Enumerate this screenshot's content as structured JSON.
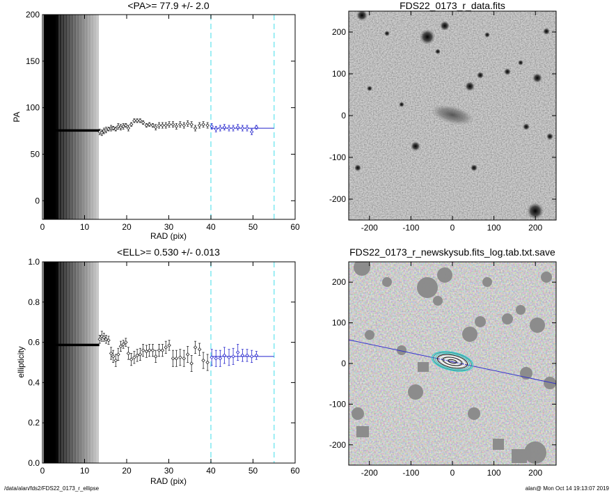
{
  "chart_data": [
    {
      "type": "scatter",
      "title": "<PA>=  77.9 +/-   2.0",
      "xlabel": "RAD (pix)",
      "ylabel": "PA",
      "xlim": [
        0,
        60
      ],
      "ylim": [
        -20,
        200
      ],
      "xticks": [
        "0",
        "10",
        "20",
        "30",
        "40",
        "50",
        "60"
      ],
      "yticks": [
        "0",
        "50",
        "100",
        "150",
        "200"
      ],
      "vlines": [
        40,
        55
      ],
      "vline_color": "#7ee8f0",
      "fit": {
        "x0": 40,
        "x1": 55,
        "y": 77.9,
        "color": "#2222cc"
      },
      "flat_segment": {
        "x0": 1,
        "x1": 13.5,
        "y": 75.5
      },
      "series": [
        {
          "color": "#222222",
          "points": [
            {
              "x": 13.6,
              "y": 74,
              "e": 3
            },
            {
              "x": 14.1,
              "y": 73,
              "e": 3
            },
            {
              "x": 14.6,
              "y": 75,
              "e": 3
            },
            {
              "x": 15.1,
              "y": 76,
              "e": 3
            },
            {
              "x": 15.7,
              "y": 77,
              "e": 2
            },
            {
              "x": 16.3,
              "y": 78,
              "e": 3
            },
            {
              "x": 16.8,
              "y": 78,
              "e": 2
            },
            {
              "x": 17.4,
              "y": 77,
              "e": 2
            },
            {
              "x": 18.0,
              "y": 80,
              "e": 3
            },
            {
              "x": 18.6,
              "y": 79,
              "e": 3
            },
            {
              "x": 19.2,
              "y": 80,
              "e": 3
            },
            {
              "x": 19.8,
              "y": 81,
              "e": 2
            },
            {
              "x": 20.4,
              "y": 78,
              "e": 3
            },
            {
              "x": 21.1,
              "y": 82,
              "e": 2
            },
            {
              "x": 21.8,
              "y": 86,
              "e": 2
            },
            {
              "x": 22.5,
              "y": 86,
              "e": 2
            },
            {
              "x": 23.2,
              "y": 86,
              "e": 2
            },
            {
              "x": 23.9,
              "y": 84,
              "e": 2
            },
            {
              "x": 24.7,
              "y": 81,
              "e": 2
            },
            {
              "x": 25.4,
              "y": 82,
              "e": 2
            },
            {
              "x": 26.2,
              "y": 81,
              "e": 2
            },
            {
              "x": 26.9,
              "y": 79,
              "e": 3
            },
            {
              "x": 27.7,
              "y": 81,
              "e": 3
            },
            {
              "x": 28.5,
              "y": 81,
              "e": 3
            },
            {
              "x": 29.3,
              "y": 81,
              "e": 3
            },
            {
              "x": 30.1,
              "y": 82,
              "e": 3
            },
            {
              "x": 31.0,
              "y": 82,
              "e": 3
            },
            {
              "x": 31.8,
              "y": 80,
              "e": 3
            },
            {
              "x": 32.7,
              "y": 82,
              "e": 3
            },
            {
              "x": 33.6,
              "y": 81,
              "e": 3
            },
            {
              "x": 34.5,
              "y": 83,
              "e": 3
            },
            {
              "x": 35.4,
              "y": 82,
              "e": 3
            },
            {
              "x": 36.3,
              "y": 78,
              "e": 3
            },
            {
              "x": 37.3,
              "y": 81,
              "e": 3
            },
            {
              "x": 38.2,
              "y": 82,
              "e": 3
            },
            {
              "x": 39.2,
              "y": 81,
              "e": 3
            }
          ]
        },
        {
          "color": "#2222cc",
          "points": [
            {
              "x": 40.2,
              "y": 80,
              "e": 3
            },
            {
              "x": 41.2,
              "y": 77,
              "e": 3
            },
            {
              "x": 42.2,
              "y": 78,
              "e": 3
            },
            {
              "x": 43.2,
              "y": 79,
              "e": 3
            },
            {
              "x": 44.3,
              "y": 78,
              "e": 3
            },
            {
              "x": 45.3,
              "y": 78,
              "e": 3
            },
            {
              "x": 46.4,
              "y": 79,
              "e": 3
            },
            {
              "x": 47.5,
              "y": 78,
              "e": 3
            },
            {
              "x": 48.6,
              "y": 78,
              "e": 3
            },
            {
              "x": 49.7,
              "y": 74,
              "e": 3
            },
            {
              "x": 50.8,
              "y": 79,
              "e": 2
            }
          ]
        }
      ]
    },
    {
      "type": "image",
      "title": "FDS22_0173_r_data.fits",
      "xlim": [
        -250,
        250
      ],
      "ylim": [
        -250,
        250
      ],
      "xticks": [
        "-200",
        "-100",
        "0",
        "100",
        "200"
      ],
      "yticks": [
        "-200",
        "-100",
        "0",
        "100",
        "200"
      ]
    },
    {
      "type": "scatter",
      "title": "<ELL>= 0.530 +/-  0.013",
      "xlabel": "RAD (pix)",
      "ylabel": "ellipticity",
      "xlim": [
        0,
        60
      ],
      "ylim": [
        0,
        1
      ],
      "xticks": [
        "0",
        "10",
        "20",
        "30",
        "40",
        "50",
        "60"
      ],
      "yticks": [
        "0.0",
        "0.2",
        "0.4",
        "0.6",
        "0.8",
        "1.0"
      ],
      "vlines": [
        40,
        55
      ],
      "vline_color": "#7ee8f0",
      "fit": {
        "x0": 40,
        "x1": 55,
        "y": 0.53,
        "color": "#2222cc"
      },
      "flat_segment": {
        "x0": 1,
        "x1": 13.5,
        "y": 0.587
      },
      "series": [
        {
          "color": "#222222",
          "points": [
            {
              "x": 13.6,
              "y": 0.615,
              "e": 0.02
            },
            {
              "x": 14.1,
              "y": 0.63,
              "e": 0.025
            },
            {
              "x": 14.6,
              "y": 0.625,
              "e": 0.02
            },
            {
              "x": 15.1,
              "y": 0.615,
              "e": 0.02
            },
            {
              "x": 15.7,
              "y": 0.61,
              "e": 0.02
            },
            {
              "x": 16.3,
              "y": 0.545,
              "e": 0.03
            },
            {
              "x": 16.8,
              "y": 0.53,
              "e": 0.03
            },
            {
              "x": 17.4,
              "y": 0.51,
              "e": 0.03
            },
            {
              "x": 18.0,
              "y": 0.54,
              "e": 0.03
            },
            {
              "x": 18.6,
              "y": 0.58,
              "e": 0.025
            },
            {
              "x": 19.2,
              "y": 0.59,
              "e": 0.02
            },
            {
              "x": 19.8,
              "y": 0.6,
              "e": 0.02
            },
            {
              "x": 20.4,
              "y": 0.545,
              "e": 0.03
            },
            {
              "x": 21.1,
              "y": 0.515,
              "e": 0.03
            },
            {
              "x": 21.8,
              "y": 0.525,
              "e": 0.03
            },
            {
              "x": 22.5,
              "y": 0.535,
              "e": 0.03
            },
            {
              "x": 23.2,
              "y": 0.54,
              "e": 0.03
            },
            {
              "x": 23.9,
              "y": 0.56,
              "e": 0.03
            },
            {
              "x": 24.7,
              "y": 0.555,
              "e": 0.03
            },
            {
              "x": 25.4,
              "y": 0.56,
              "e": 0.03
            },
            {
              "x": 26.2,
              "y": 0.56,
              "e": 0.03
            },
            {
              "x": 26.9,
              "y": 0.53,
              "e": 0.03
            },
            {
              "x": 27.7,
              "y": 0.56,
              "e": 0.03
            },
            {
              "x": 28.5,
              "y": 0.56,
              "e": 0.03
            },
            {
              "x": 29.3,
              "y": 0.575,
              "e": 0.03
            },
            {
              "x": 30.1,
              "y": 0.585,
              "e": 0.025
            },
            {
              "x": 31.0,
              "y": 0.52,
              "e": 0.04
            },
            {
              "x": 31.8,
              "y": 0.52,
              "e": 0.04
            },
            {
              "x": 32.7,
              "y": 0.525,
              "e": 0.04
            },
            {
              "x": 33.6,
              "y": 0.52,
              "e": 0.04
            },
            {
              "x": 34.5,
              "y": 0.54,
              "e": 0.04
            },
            {
              "x": 35.4,
              "y": 0.495,
              "e": 0.04
            },
            {
              "x": 36.3,
              "y": 0.575,
              "e": 0.03
            },
            {
              "x": 37.3,
              "y": 0.565,
              "e": 0.03
            },
            {
              "x": 38.2,
              "y": 0.51,
              "e": 0.04
            },
            {
              "x": 39.2,
              "y": 0.5,
              "e": 0.04
            }
          ]
        },
        {
          "color": "#2222cc",
          "points": [
            {
              "x": 40.2,
              "y": 0.525,
              "e": 0.04
            },
            {
              "x": 41.2,
              "y": 0.52,
              "e": 0.04
            },
            {
              "x": 42.2,
              "y": 0.52,
              "e": 0.04
            },
            {
              "x": 43.2,
              "y": 0.535,
              "e": 0.04
            },
            {
              "x": 44.3,
              "y": 0.525,
              "e": 0.04
            },
            {
              "x": 45.3,
              "y": 0.53,
              "e": 0.04
            },
            {
              "x": 46.4,
              "y": 0.55,
              "e": 0.04
            },
            {
              "x": 47.5,
              "y": 0.535,
              "e": 0.03
            },
            {
              "x": 48.6,
              "y": 0.535,
              "e": 0.03
            },
            {
              "x": 49.7,
              "y": 0.53,
              "e": 0.03
            },
            {
              "x": 50.8,
              "y": 0.535,
              "e": 0.02
            }
          ]
        }
      ]
    },
    {
      "type": "image",
      "title": "FDS22_0173_r_newskysub.fits_log.tab.txt.save",
      "xlim": [
        -250,
        250
      ],
      "ylim": [
        -250,
        250
      ],
      "xticks": [
        "-200",
        "-100",
        "0",
        "100",
        "200"
      ],
      "yticks": [
        "-200",
        "-100",
        "0",
        "100",
        "200"
      ],
      "pa_line_color": "#3333cc",
      "contour_colors": [
        "#33cccc",
        "#2a9d9d",
        "#222222",
        "#ffffff"
      ]
    }
  ],
  "footer": {
    "left": "/data/alan/fds2/FDS22_0173_r_ellipse",
    "right": "alan@  Mon Oct 14 19:13:07 2019"
  }
}
